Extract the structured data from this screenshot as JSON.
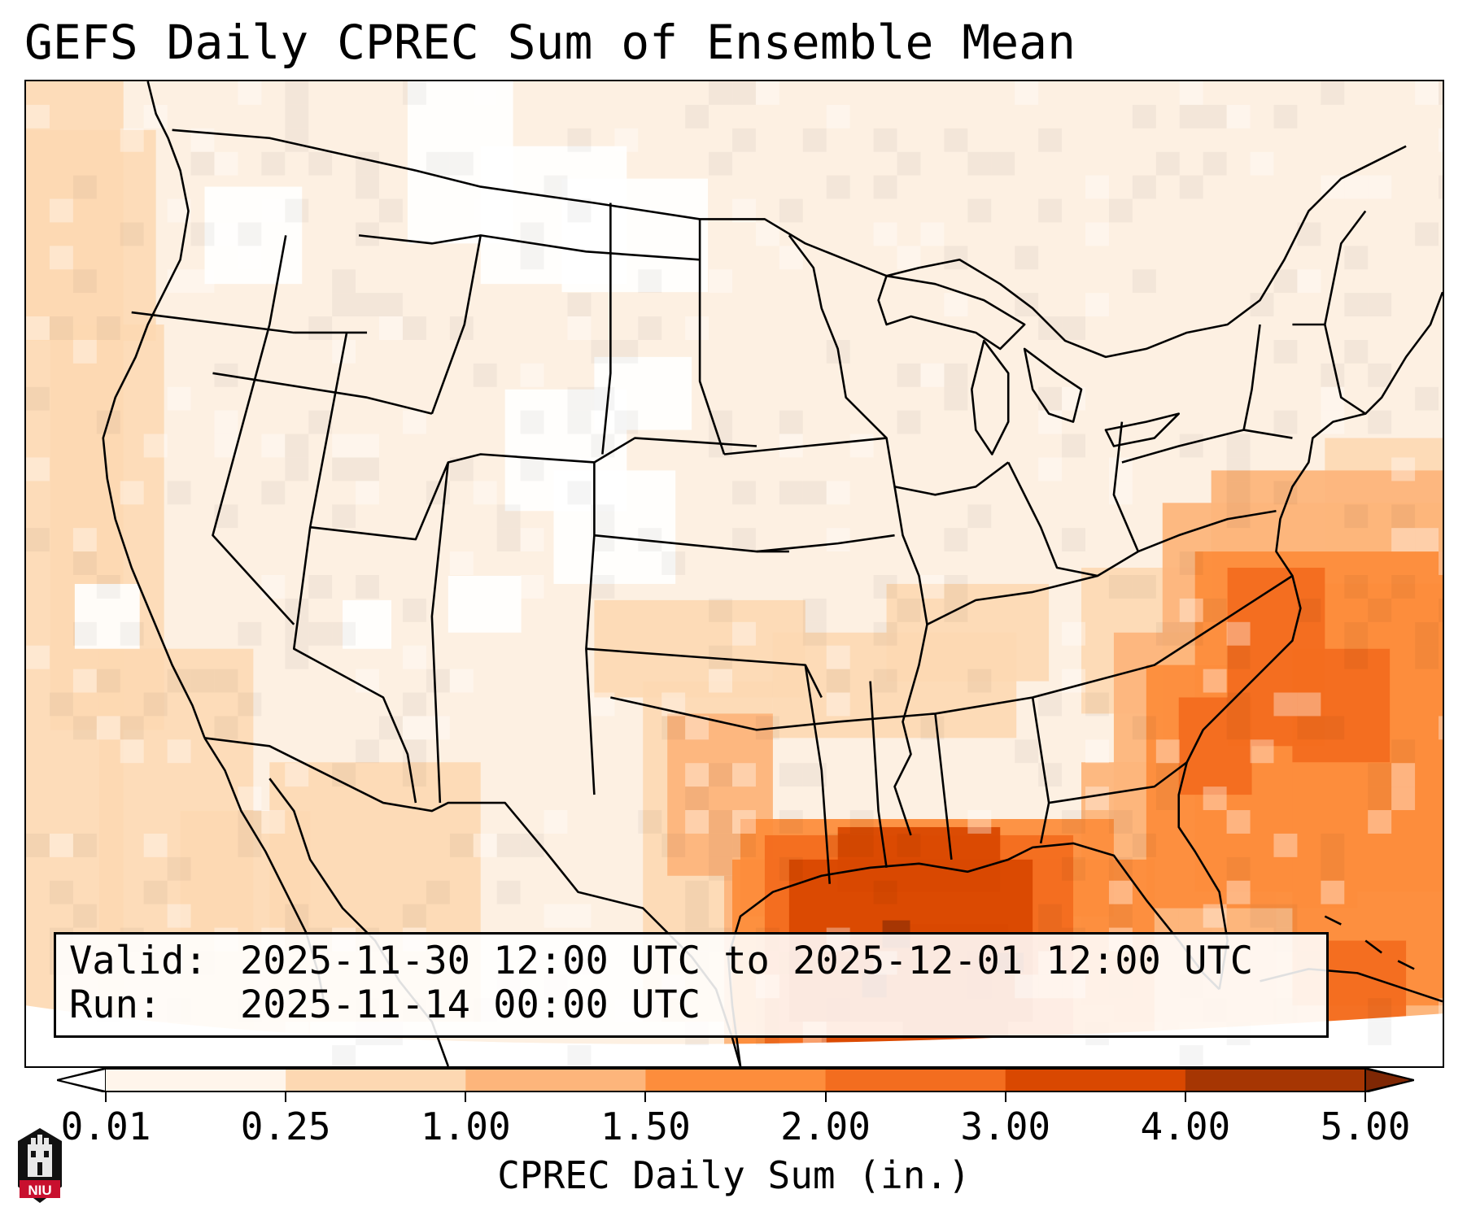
{
  "title": "GEFS Daily CPREC Sum of Ensemble Mean",
  "info": {
    "valid_label": "Valid:",
    "valid_value": "2025-11-30 12:00 UTC to 2025-12-01 12:00 UTC",
    "run_label": "Run:",
    "run_value": "2025-11-14 00:00 UTC"
  },
  "colorbar": {
    "label": "CPREC Daily Sum (in.)",
    "ticks": [
      "0.01",
      "0.25",
      "1.00",
      "1.50",
      "2.00",
      "3.00",
      "4.00",
      "5.00"
    ],
    "colors": [
      "#fff5eb",
      "#fdd8b2",
      "#fdb57b",
      "#fd8d3c",
      "#f36d1f",
      "#d94801",
      "#a63603"
    ],
    "under_color": "#ffffff",
    "over_color": "#7f2704"
  },
  "logo": {
    "icon": "niu-logo-icon",
    "text": "NIU",
    "color": "#c8102e"
  },
  "map": {
    "projection": "lambert-conformal",
    "region": "CONUS",
    "boundaries": [
      "coastlines",
      "state-borders",
      "country-borders"
    ]
  }
}
